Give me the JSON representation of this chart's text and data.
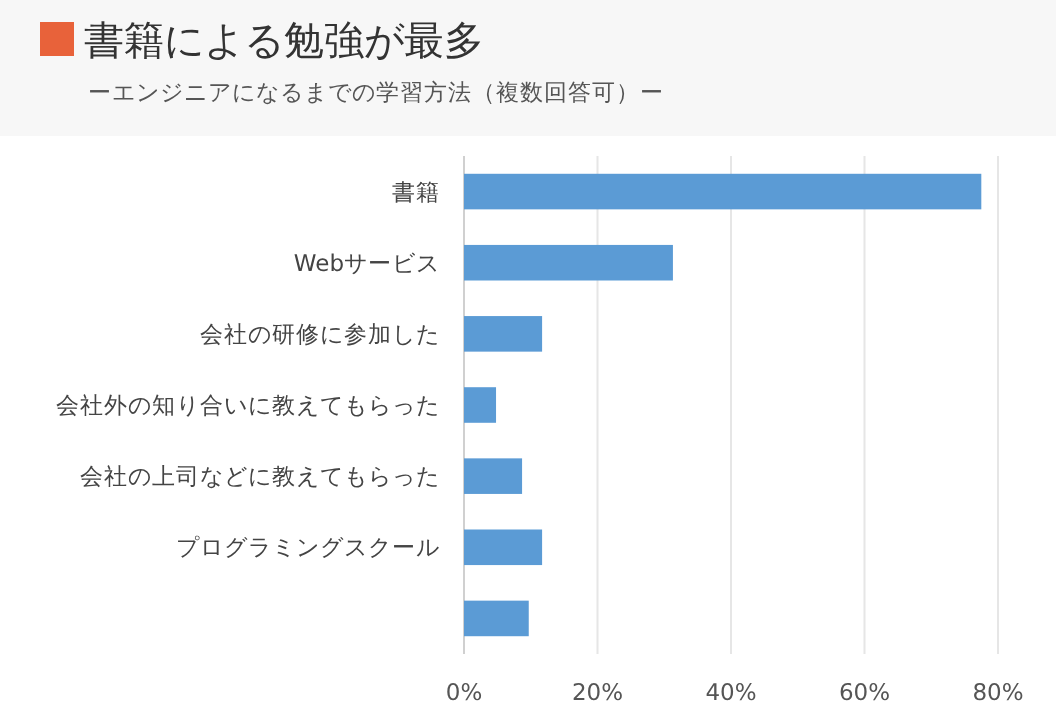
{
  "chart_data": {
    "type": "bar",
    "orientation": "horizontal",
    "title": "書籍による勉強が最多",
    "subtitle": "ーエンジニアになるまでの学習方法（複数回答可）ー",
    "categories": [
      "書籍",
      "Webサービス",
      "会社の研修に参加した",
      "会社外の知り合いに教えてもらった",
      "会社の上司などに教えてもらった",
      "プログラミングスクール",
      null
    ],
    "values": [
      77.5,
      31.3,
      11.7,
      4.8,
      8.7,
      11.7,
      9.7
    ],
    "color": "#5b9bd5",
    "xlim": [
      0,
      80
    ],
    "xticks": [
      {
        "value": 0,
        "label": "0%"
      },
      {
        "value": 20,
        "label": "20%"
      },
      {
        "value": 40,
        "label": "40%"
      },
      {
        "value": 60,
        "label": "60%"
      },
      {
        "value": 80,
        "label": "80%"
      }
    ],
    "grid": "x"
  }
}
